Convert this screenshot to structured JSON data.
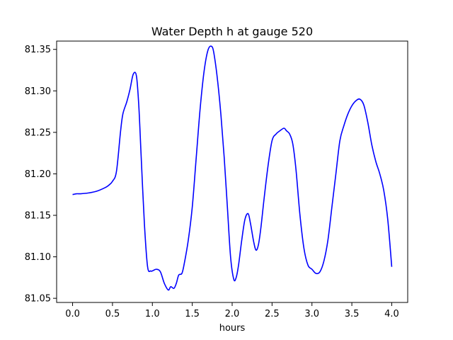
{
  "chart_data": {
    "type": "line",
    "title": "Water Depth h at gauge 520",
    "xlabel": "hours",
    "ylabel": "",
    "xlim": [
      -0.2,
      4.2
    ],
    "ylim": [
      81.045,
      81.36
    ],
    "xticks": [
      0.0,
      0.5,
      1.0,
      1.5,
      2.0,
      2.5,
      3.0,
      3.5,
      4.0
    ],
    "xtick_labels": [
      "0.0",
      "0.5",
      "1.0",
      "1.5",
      "2.0",
      "2.5",
      "3.0",
      "3.5",
      "4.0"
    ],
    "yticks": [
      81.05,
      81.1,
      81.15,
      81.2,
      81.25,
      81.3,
      81.35
    ],
    "ytick_labels": [
      "81.05",
      "81.10",
      "81.15",
      "81.20",
      "81.25",
      "81.30",
      "81.35"
    ],
    "grid": false,
    "series": [
      {
        "color": "#0000ff",
        "x": [
          0.0,
          0.05,
          0.1,
          0.2,
          0.3,
          0.4,
          0.45,
          0.5,
          0.55,
          0.6,
          0.63,
          0.68,
          0.72,
          0.76,
          0.8,
          0.83,
          0.86,
          0.9,
          0.94,
          0.98,
          1.0,
          1.05,
          1.1,
          1.15,
          1.2,
          1.23,
          1.27,
          1.3,
          1.33,
          1.37,
          1.4,
          1.45,
          1.5,
          1.55,
          1.6,
          1.65,
          1.7,
          1.75,
          1.78,
          1.82,
          1.86,
          1.9,
          1.94,
          1.98,
          2.02,
          2.05,
          2.08,
          2.12,
          2.16,
          2.2,
          2.23,
          2.27,
          2.3,
          2.33,
          2.36,
          2.4,
          2.45,
          2.5,
          2.55,
          2.6,
          2.65,
          2.68,
          2.72,
          2.76,
          2.8,
          2.85,
          2.9,
          2.95,
          3.0,
          3.05,
          3.1,
          3.15,
          3.2,
          3.25,
          3.3,
          3.35,
          3.4,
          3.45,
          3.5,
          3.55,
          3.6,
          3.65,
          3.7,
          3.75,
          3.8,
          3.85,
          3.9,
          3.95,
          4.0
        ],
        "y": [
          81.175,
          81.176,
          81.176,
          81.177,
          81.179,
          81.183,
          81.186,
          81.191,
          81.203,
          81.25,
          81.272,
          81.287,
          81.302,
          81.32,
          81.318,
          81.282,
          81.22,
          81.14,
          81.088,
          81.083,
          81.083,
          81.085,
          81.082,
          81.068,
          81.06,
          81.064,
          81.062,
          81.068,
          81.078,
          81.08,
          81.092,
          81.12,
          81.16,
          81.22,
          81.28,
          81.325,
          81.35,
          81.353,
          81.34,
          81.31,
          81.27,
          81.22,
          81.16,
          81.1,
          81.073,
          81.075,
          81.09,
          81.12,
          81.145,
          81.152,
          81.14,
          81.118,
          81.108,
          81.115,
          81.135,
          81.17,
          81.21,
          81.24,
          81.248,
          81.252,
          81.255,
          81.252,
          81.248,
          81.236,
          81.205,
          81.15,
          81.11,
          81.09,
          81.085,
          81.08,
          81.082,
          81.095,
          81.12,
          81.16,
          81.2,
          81.24,
          81.258,
          81.272,
          81.282,
          81.288,
          81.29,
          81.283,
          81.262,
          81.235,
          81.215,
          81.2,
          81.18,
          81.145,
          81.088
        ]
      }
    ]
  }
}
